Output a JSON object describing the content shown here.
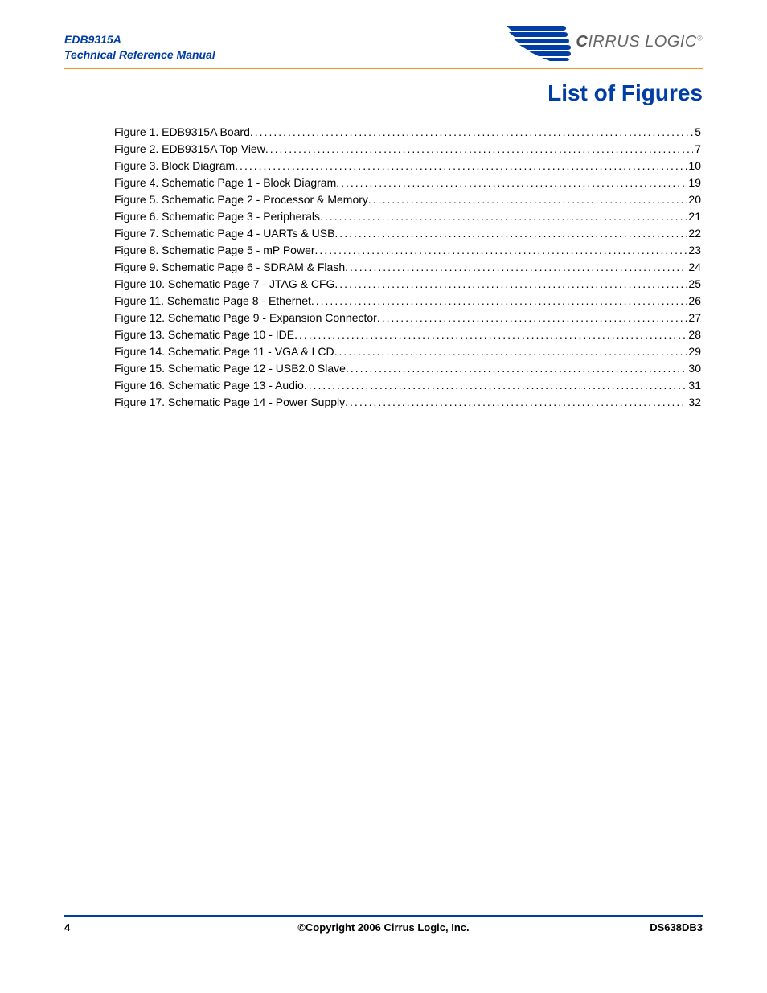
{
  "header": {
    "product": "EDB9315A",
    "subtitle": "Technical Reference Manual",
    "brand_first": "C",
    "brand_rest": "IRRUS LOGIC"
  },
  "title": "List of Figures",
  "toc": [
    {
      "label": "Figure 1. EDB9315A Board",
      "page": "5"
    },
    {
      "label": "Figure 2. EDB9315A Top View",
      "page": "7"
    },
    {
      "label": "Figure 3. Block Diagram",
      "page": "10"
    },
    {
      "label": "Figure 4. Schematic Page 1 - Block Diagram",
      "page": "19"
    },
    {
      "label": "Figure 5. Schematic Page 2 - Processor & Memory",
      "page": "20"
    },
    {
      "label": "Figure 6. Schematic Page 3 - Peripherals",
      "page": "21"
    },
    {
      "label": "Figure 7. Schematic Page 4 - UARTs & USB",
      "page": "22"
    },
    {
      "label": "Figure 8. Schematic Page 5 - mP Power",
      "page": "23"
    },
    {
      "label": "Figure 9. Schematic Page 6 - SDRAM & Flash",
      "page": "24"
    },
    {
      "label": "Figure 10. Schematic Page 7 - JTAG & CFG",
      "page": "25"
    },
    {
      "label": "Figure 11. Schematic Page 8 - Ethernet",
      "page": "26"
    },
    {
      "label": "Figure 12. Schematic Page 9 - Expansion Connector",
      "page": "27"
    },
    {
      "label": "Figure 13. Schematic Page 10 - IDE",
      "page": "28"
    },
    {
      "label": "Figure 14. Schematic Page 11 - VGA & LCD",
      "page": "29"
    },
    {
      "label": "Figure 15. Schematic Page 12 - USB2.0 Slave",
      "page": "30"
    },
    {
      "label": "Figure 16. Schematic Page 13 - Audio",
      "page": "31"
    },
    {
      "label": "Figure 17. Schematic Page 14 - Power Supply",
      "page": "32"
    }
  ],
  "footer": {
    "page_num": "4",
    "copyright": "©Copyright 2006 Cirrus Logic, Inc.",
    "doc_id": "DS638DB3"
  },
  "colors": {
    "brand_blue": "#003da5",
    "rule_orange": "#f7941d"
  }
}
